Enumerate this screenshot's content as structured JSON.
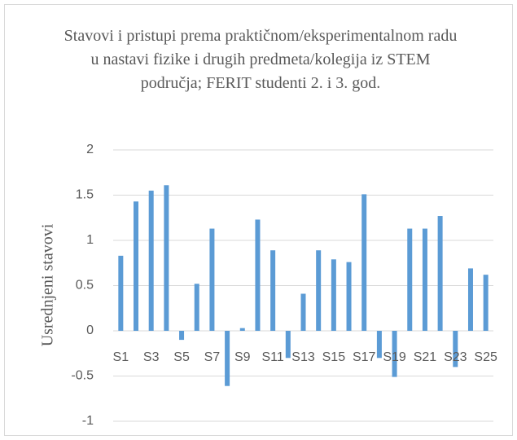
{
  "chart_data": {
    "type": "bar",
    "title": "Stavovi i pristupi prema praktičnom/eksperimentalnom radu u nastavi fizike i drugih predmeta/kolegija iz STEM područja; FERIT studenti 2. i 3. god.",
    "y_label": "Usrednjeni stavovi",
    "categories": [
      "S1",
      null,
      "S3",
      null,
      "S5",
      null,
      "S7",
      null,
      "S9",
      null,
      "S11",
      null,
      "S13",
      null,
      "S15",
      null,
      "S17",
      null,
      "S19",
      null,
      "S21",
      null,
      "S23",
      null,
      "S25"
    ],
    "values": [
      0.83,
      1.43,
      1.55,
      1.61,
      -0.1,
      0.52,
      1.13,
      -0.61,
      0.03,
      1.23,
      0.89,
      -0.3,
      0.41,
      0.89,
      0.79,
      0.76,
      1.51,
      -0.3,
      -0.51,
      1.13,
      1.13,
      1.27,
      -0.4,
      0.69,
      0.62
    ],
    "color": "#5b9bd5",
    "ylim": [
      -1,
      2
    ],
    "yticks": [
      -1,
      -0.5,
      0,
      0.5,
      1,
      1.5,
      2
    ],
    "grid": true
  }
}
